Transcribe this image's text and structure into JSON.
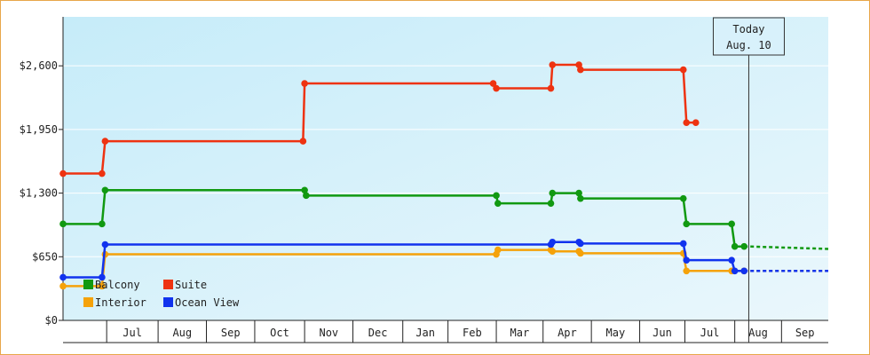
{
  "chart_data": {
    "type": "line",
    "title": "",
    "xlabel": "",
    "ylabel": "",
    "ylim": [
      0,
      3100
    ],
    "y_ticks": [
      {
        "value": 0,
        "label": "$0"
      },
      {
        "value": 650,
        "label": "$650"
      },
      {
        "value": 1300,
        "label": "$1,300"
      },
      {
        "value": 1950,
        "label": "$1,950"
      },
      {
        "value": 2600,
        "label": "$2,600"
      }
    ],
    "x_range": [
      "2023-05-28",
      "2024-09-30"
    ],
    "x_ticks": [
      {
        "label": "Jul",
        "start": "2023-06-25",
        "end": "2023-07-28"
      },
      {
        "label": "Aug",
        "start": "2023-07-28",
        "end": "2023-08-28"
      },
      {
        "label": "Sep",
        "start": "2023-08-28",
        "end": "2023-09-28"
      },
      {
        "label": "Oct",
        "start": "2023-09-28",
        "end": "2023-10-30"
      },
      {
        "label": "Nov",
        "start": "2023-10-30",
        "end": "2023-11-30"
      },
      {
        "label": "Dec",
        "start": "2023-11-30",
        "end": "2024-01-01"
      },
      {
        "label": "Jan",
        "start": "2024-01-01",
        "end": "2024-01-30"
      },
      {
        "label": "Feb",
        "start": "2024-01-30",
        "end": "2024-03-01"
      },
      {
        "label": "Mar",
        "start": "2024-03-01",
        "end": "2024-03-31"
      },
      {
        "label": "Apr",
        "start": "2024-03-31",
        "end": "2024-05-01"
      },
      {
        "label": "May",
        "start": "2024-05-01",
        "end": "2024-06-01"
      },
      {
        "label": "Jun",
        "start": "2024-06-01",
        "end": "2024-06-30"
      },
      {
        "label": "Jul",
        "start": "2024-06-30",
        "end": "2024-08-01"
      },
      {
        "label": "Aug",
        "start": "2024-08-01",
        "end": "2024-08-31"
      },
      {
        "label": "Sep",
        "start": "2024-08-31",
        "end": "2024-09-30"
      }
    ],
    "today": {
      "label": "Today",
      "date_label": "Aug. 10",
      "date": "2024-08-10"
    },
    "legend_position": "bottom-left",
    "series": [
      {
        "name": "Balcony",
        "color": "#119911",
        "points": [
          [
            "2023-05-28",
            985
          ],
          [
            "2023-06-22",
            985
          ],
          [
            "2023-06-24",
            1330
          ],
          [
            "2023-10-30",
            1330
          ],
          [
            "2023-10-31",
            1275
          ],
          [
            "2024-03-01",
            1275
          ],
          [
            "2024-03-02",
            1195
          ],
          [
            "2024-04-05",
            1195
          ],
          [
            "2024-04-06",
            1300
          ],
          [
            "2024-04-23",
            1300
          ],
          [
            "2024-04-24",
            1245
          ],
          [
            "2024-06-29",
            1245
          ],
          [
            "2024-07-01",
            985
          ],
          [
            "2024-07-30",
            985
          ],
          [
            "2024-08-01",
            755
          ],
          [
            "2024-08-07",
            755
          ]
        ],
        "projection": [
          [
            "2024-08-10",
            755
          ],
          [
            "2024-09-30",
            730
          ]
        ]
      },
      {
        "name": "Suite",
        "color": "#ee3311",
        "points": [
          [
            "2023-05-28",
            1500
          ],
          [
            "2023-06-22",
            1500
          ],
          [
            "2023-06-24",
            1830
          ],
          [
            "2023-10-29",
            1830
          ],
          [
            "2023-10-30",
            2420
          ],
          [
            "2024-02-28",
            2420
          ],
          [
            "2024-03-01",
            2370
          ],
          [
            "2024-04-05",
            2370
          ],
          [
            "2024-04-06",
            2610
          ],
          [
            "2024-04-23",
            2610
          ],
          [
            "2024-04-24",
            2560
          ],
          [
            "2024-06-29",
            2560
          ],
          [
            "2024-07-01",
            2020
          ],
          [
            "2024-07-07",
            2020
          ]
        ]
      },
      {
        "name": "Interior",
        "color": "#f5a20a",
        "points": [
          [
            "2023-05-28",
            350
          ],
          [
            "2023-06-22",
            350
          ],
          [
            "2023-06-24",
            675
          ],
          [
            "2024-03-01",
            675
          ],
          [
            "2024-03-02",
            720
          ],
          [
            "2024-04-05",
            720
          ],
          [
            "2024-04-06",
            705
          ],
          [
            "2024-04-23",
            705
          ],
          [
            "2024-04-24",
            685
          ],
          [
            "2024-06-29",
            685
          ],
          [
            "2024-07-01",
            505
          ],
          [
            "2024-07-30",
            505
          ],
          [
            "2024-08-07",
            505
          ]
        ],
        "projection": [
          [
            "2024-08-10",
            505
          ],
          [
            "2024-09-30",
            505
          ]
        ]
      },
      {
        "name": "Ocean View",
        "color": "#1133ee",
        "points": [
          [
            "2023-05-28",
            440
          ],
          [
            "2023-06-22",
            440
          ],
          [
            "2023-06-24",
            775
          ],
          [
            "2024-04-05",
            775
          ],
          [
            "2024-04-06",
            800
          ],
          [
            "2024-04-23",
            800
          ],
          [
            "2024-04-24",
            785
          ],
          [
            "2024-06-29",
            785
          ],
          [
            "2024-07-01",
            615
          ],
          [
            "2024-07-30",
            615
          ],
          [
            "2024-08-01",
            505
          ],
          [
            "2024-08-07",
            505
          ]
        ],
        "projection": [
          [
            "2024-08-10",
            505
          ],
          [
            "2024-09-30",
            505
          ]
        ]
      }
    ]
  }
}
